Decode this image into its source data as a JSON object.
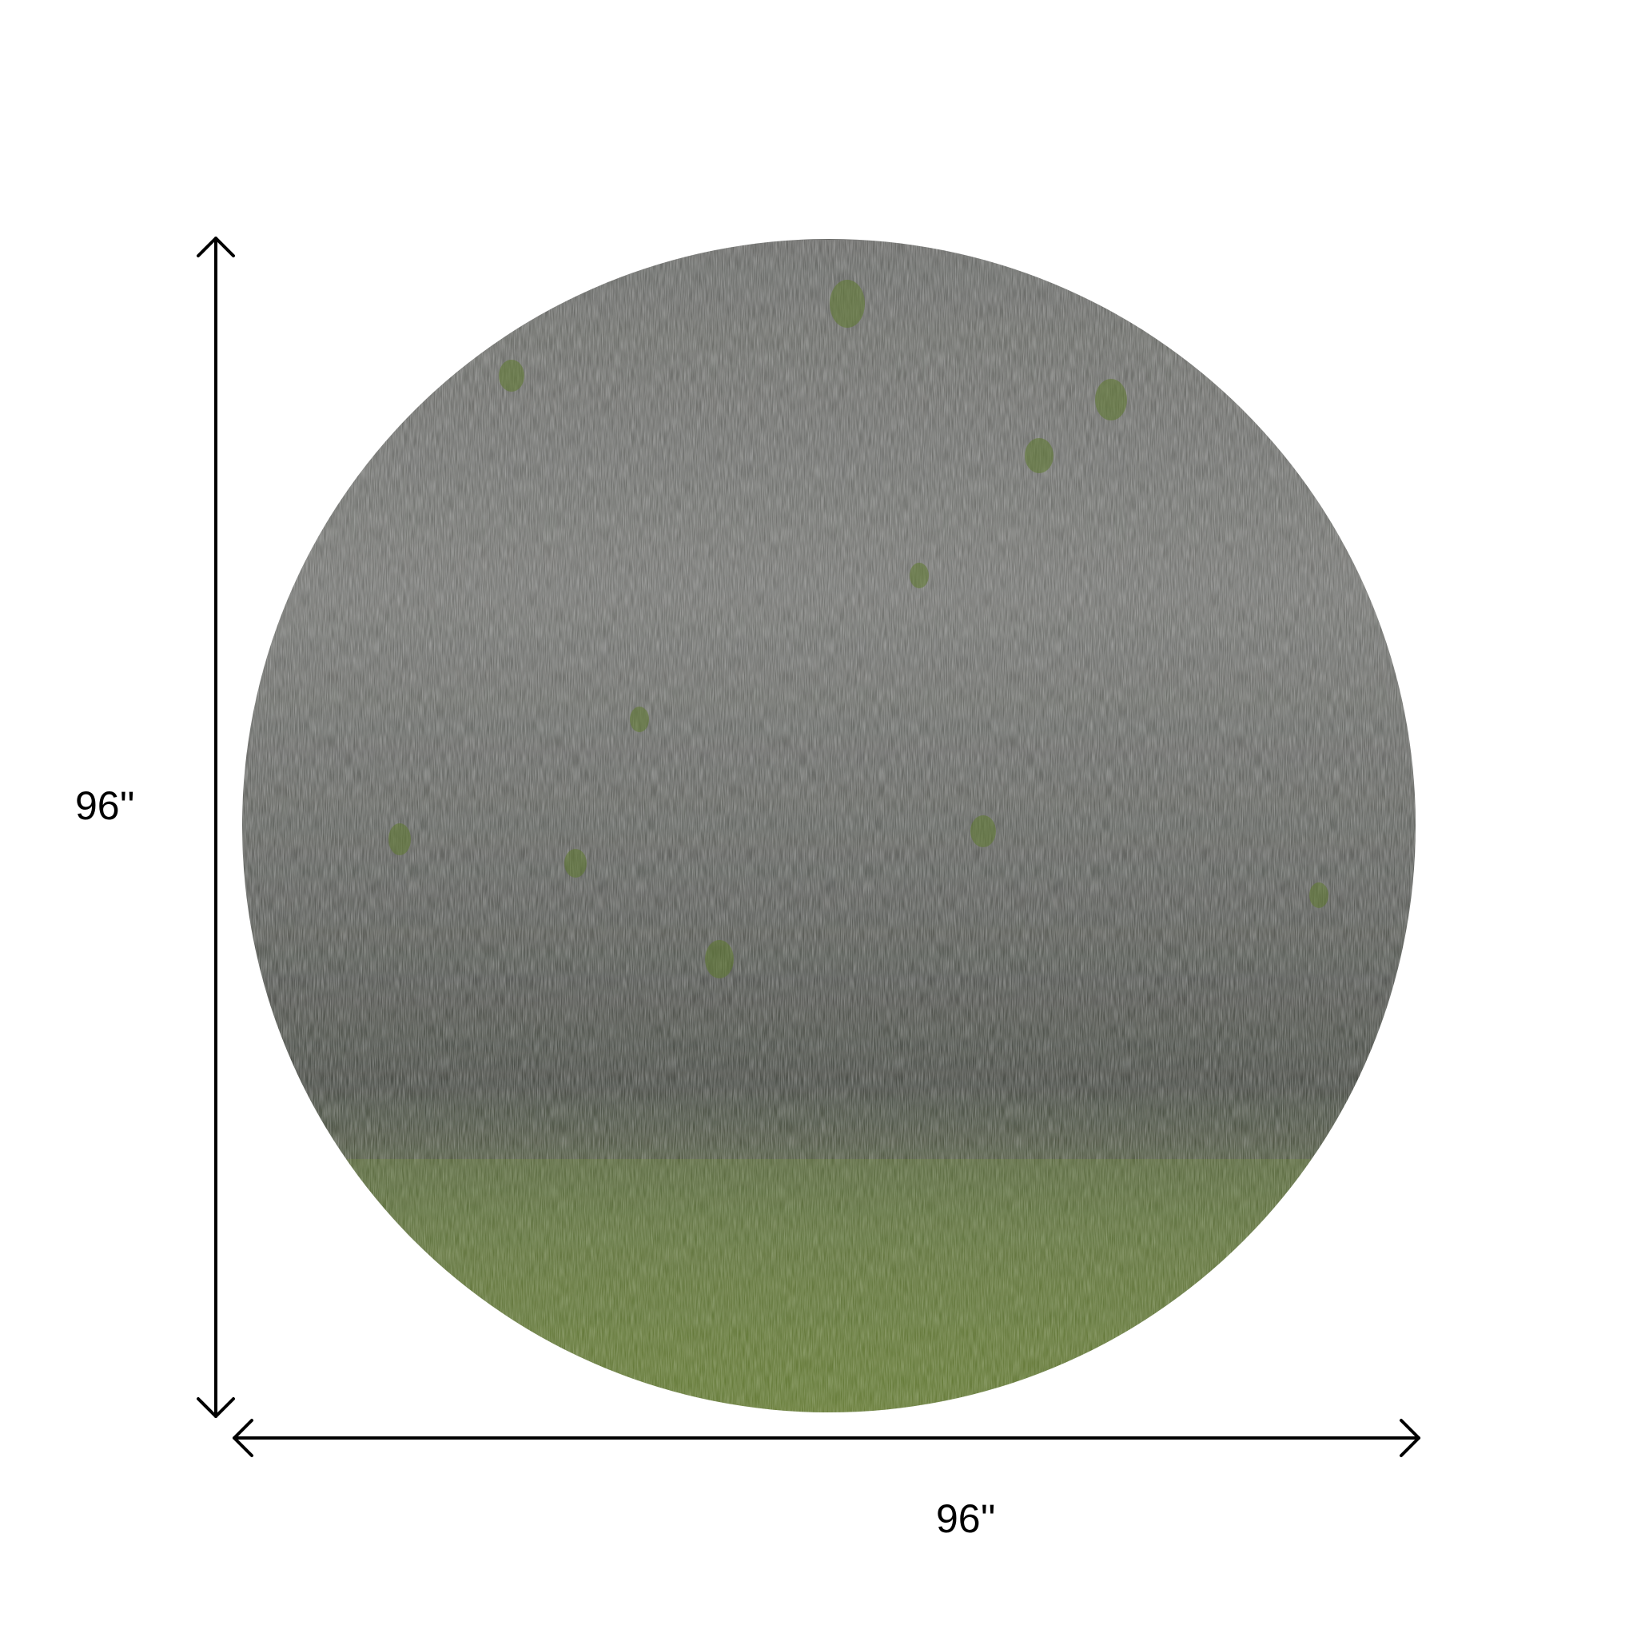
{
  "product": {
    "shape": "round rug",
    "colors": {
      "base": "#5e5f5c",
      "light": "#9a9b96",
      "dark": "#3e3f3c",
      "accent_green": "#6f8a3a"
    }
  },
  "dimensions": {
    "height_label": "96''",
    "width_label": "96''"
  },
  "icons": {
    "arrow": "double-headed-arrow"
  }
}
